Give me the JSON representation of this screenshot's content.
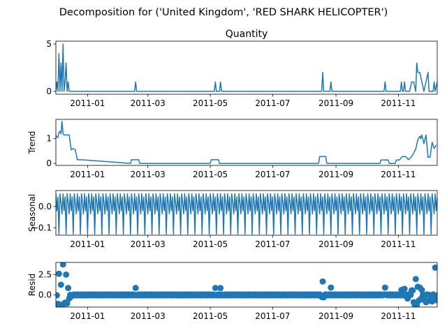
{
  "suptitle": "Decomposition for ('United Kingdom', 'RED SHARK HELICOPTER')",
  "line_color": "#1f77b4",
  "x_tick_labels": [
    "2011-01",
    "2011-03",
    "2011-05",
    "2011-07",
    "2011-09",
    "2011-11"
  ],
  "x_tick_dates": [
    "2011-01-01",
    "2011-03-01",
    "2011-05-01",
    "2011-07-01",
    "2011-09-01",
    "2011-11-01"
  ],
  "x_range": [
    "2010-12-01",
    "2011-12-09"
  ],
  "chart_data": [
    {
      "type": "line",
      "title": "Quantity",
      "ylabel": "",
      "ylim": [
        -0.3,
        5.3
      ],
      "yticks": [
        0,
        5
      ],
      "ytick_labels": [
        "0",
        "5"
      ],
      "series": [
        {
          "x": [
            "2010-12-01",
            "2010-12-02",
            "2010-12-03",
            "2010-12-04",
            "2010-12-05",
            "2010-12-06",
            "2010-12-07",
            "2010-12-08",
            "2010-12-09",
            "2010-12-10",
            "2010-12-11",
            "2010-12-12",
            "2010-12-13",
            "2010-12-14",
            "2010-12-15",
            "2010-12-16",
            "2010-12-17",
            "2011-02-16",
            "2011-02-17",
            "2011-02-18",
            "2011-05-05",
            "2011-05-06",
            "2011-05-07",
            "2011-05-10",
            "2011-05-11",
            "2011-05-12",
            "2011-08-18",
            "2011-08-19",
            "2011-08-20",
            "2011-08-26",
            "2011-08-27",
            "2011-08-28",
            "2011-10-18",
            "2011-10-19",
            "2011-10-20",
            "2011-11-03",
            "2011-11-04",
            "2011-11-05",
            "2011-11-06",
            "2011-11-07",
            "2011-11-08",
            "2011-11-12",
            "2011-11-14",
            "2011-11-16",
            "2011-11-18",
            "2011-11-19",
            "2011-11-20",
            "2011-11-22",
            "2011-11-24",
            "2011-11-26",
            "2011-11-28",
            "2011-11-30",
            "2011-12-01",
            "2011-12-02",
            "2011-12-03",
            "2011-12-04",
            "2011-12-05",
            "2011-12-06",
            "2011-12-07",
            "2011-12-09"
          ],
          "y": [
            0,
            1,
            0,
            4,
            0,
            3,
            0,
            5,
            0,
            1,
            3,
            0,
            1,
            0,
            0,
            0,
            0,
            0,
            1,
            0,
            0,
            1,
            0,
            0,
            1,
            0,
            0,
            2,
            0,
            0,
            1,
            0,
            0,
            1,
            0,
            0,
            1,
            0,
            0,
            1,
            0,
            0,
            1,
            1,
            0,
            3,
            2,
            2,
            1,
            0,
            1,
            2,
            0,
            0,
            0,
            0,
            0,
            1,
            0,
            1
          ]
        }
      ]
    },
    {
      "type": "line",
      "title": "",
      "ylabel": "Trend",
      "ylim": [
        -0.08,
        1.78
      ],
      "yticks": [
        0,
        1
      ],
      "ytick_labels": [
        "0",
        "1"
      ],
      "series": [
        {
          "x": [
            "2010-12-01",
            "2010-12-02",
            "2010-12-03",
            "2010-12-04",
            "2010-12-05",
            "2010-12-06",
            "2010-12-07",
            "2010-12-08",
            "2010-12-09",
            "2010-12-10",
            "2010-12-11",
            "2010-12-12",
            "2010-12-14",
            "2010-12-16",
            "2010-12-18",
            "2010-12-20",
            "2010-12-22",
            "2010-12-26",
            "2011-02-12",
            "2011-02-13",
            "2011-02-20",
            "2011-02-21",
            "2011-05-01",
            "2011-05-02",
            "2011-05-09",
            "2011-05-10",
            "2011-05-16",
            "2011-05-17",
            "2011-08-15",
            "2011-08-16",
            "2011-08-22",
            "2011-08-23",
            "2011-08-29",
            "2011-08-30",
            "2011-10-14",
            "2011-10-15",
            "2011-10-22",
            "2011-10-23",
            "2011-10-29",
            "2011-10-30",
            "2011-11-02",
            "2011-11-05",
            "2011-11-08",
            "2011-11-11",
            "2011-11-14",
            "2011-11-16",
            "2011-11-18",
            "2011-11-20",
            "2011-11-22",
            "2011-11-23",
            "2011-11-24",
            "2011-11-26",
            "2011-11-28",
            "2011-11-30",
            "2011-12-02",
            "2011-12-04",
            "2011-12-06",
            "2011-12-08"
          ],
          "y": [
            1.15,
            1.05,
            1.05,
            1.25,
            1.3,
            1.2,
            1.7,
            1.2,
            1.15,
            1.15,
            1.15,
            1.15,
            1.15,
            0.55,
            0.6,
            0.55,
            0.15,
            0.15,
            0.0,
            0.15,
            0.15,
            0.0,
            0.0,
            0.15,
            0.15,
            0.0,
            0.0,
            0.0,
            0.0,
            0.28,
            0.28,
            0.0,
            0.0,
            0.0,
            0.0,
            0.14,
            0.14,
            0.0,
            0.0,
            0.14,
            0.14,
            0.28,
            0.28,
            0.15,
            0.28,
            0.42,
            0.58,
            0.95,
            1.1,
            1.0,
            1.15,
            0.8,
            1.15,
            0.25,
            0.25,
            0.85,
            0.6,
            0.75
          ]
        }
      ]
    },
    {
      "type": "line",
      "title": "",
      "ylabel": "Seasonal",
      "ylim": [
        -0.135,
        0.075
      ],
      "yticks": [
        0.0,
        -0.1
      ],
      "ytick_labels": [
        "0.0",
        "−0.1"
      ],
      "pattern_period_days": 7,
      "pattern_values": [
        0.06,
        -0.02,
        0.045,
        -0.13,
        0.06,
        0.02,
        -0.035
      ],
      "series_start": "2010-12-01",
      "series_end": "2011-12-09"
    },
    {
      "type": "scatter",
      "title": "",
      "ylabel": "Resid",
      "ylim": [
        -1.5,
        4.0
      ],
      "yticks": [
        0.0,
        2.5
      ],
      "ytick_labels": [
        "0.0",
        "2.5"
      ],
      "baseline_start": "2010-12-01",
      "baseline_end": "2011-12-09",
      "baseline_value": 0.0,
      "baseline_jitter": 0.06,
      "points": [
        {
          "x": "2010-12-01",
          "y": -1.15
        },
        {
          "x": "2010-12-02",
          "y": -0.05
        },
        {
          "x": "2010-12-03",
          "y": -1.1
        },
        {
          "x": "2010-12-04",
          "y": 2.6
        },
        {
          "x": "2010-12-05",
          "y": -1.2
        },
        {
          "x": "2010-12-06",
          "y": 1.25
        },
        {
          "x": "2010-12-07",
          "y": -1.2
        },
        {
          "x": "2010-12-08",
          "y": 3.75
        },
        {
          "x": "2010-12-09",
          "y": -1.1
        },
        {
          "x": "2010-12-10",
          "y": -0.95
        },
        {
          "x": "2010-12-11",
          "y": 2.5
        },
        {
          "x": "2010-12-12",
          "y": -1.05
        },
        {
          "x": "2010-12-13",
          "y": 0.85
        },
        {
          "x": "2010-12-14",
          "y": -0.45
        },
        {
          "x": "2010-12-16",
          "y": -0.2
        },
        {
          "x": "2011-02-17",
          "y": 0.85
        },
        {
          "x": "2011-05-06",
          "y": 0.85
        },
        {
          "x": "2011-05-11",
          "y": 0.85
        },
        {
          "x": "2011-08-19",
          "y": 1.65
        },
        {
          "x": "2011-08-18",
          "y": -0.25
        },
        {
          "x": "2011-08-20",
          "y": -0.3
        },
        {
          "x": "2011-08-27",
          "y": 0.9
        },
        {
          "x": "2011-10-19",
          "y": 0.9
        },
        {
          "x": "2011-11-04",
          "y": 0.6
        },
        {
          "x": "2011-11-07",
          "y": 0.75
        },
        {
          "x": "2011-11-10",
          "y": -0.45
        },
        {
          "x": "2011-11-14",
          "y": 0.55
        },
        {
          "x": "2011-11-15",
          "y": 0.55
        },
        {
          "x": "2011-11-16",
          "y": -0.9
        },
        {
          "x": "2011-11-17",
          "y": -1.2
        },
        {
          "x": "2011-11-18",
          "y": 1.95
        },
        {
          "x": "2011-11-19",
          "y": -1.25
        },
        {
          "x": "2011-11-20",
          "y": 1.0
        },
        {
          "x": "2011-11-21",
          "y": -0.7
        },
        {
          "x": "2011-11-22",
          "y": 0.9
        },
        {
          "x": "2011-11-23",
          "y": -0.5
        },
        {
          "x": "2011-11-24",
          "y": 0.6
        },
        {
          "x": "2011-11-26",
          "y": -0.6
        },
        {
          "x": "2011-11-28",
          "y": -0.9
        },
        {
          "x": "2011-11-30",
          "y": -0.75
        },
        {
          "x": "2011-12-02",
          "y": -0.6
        },
        {
          "x": "2011-12-04",
          "y": -0.8
        },
        {
          "x": "2011-12-06",
          "y": -0.5
        },
        {
          "x": "2011-12-07",
          "y": 3.35
        },
        {
          "x": "2011-12-08",
          "y": -0.65
        }
      ]
    }
  ]
}
